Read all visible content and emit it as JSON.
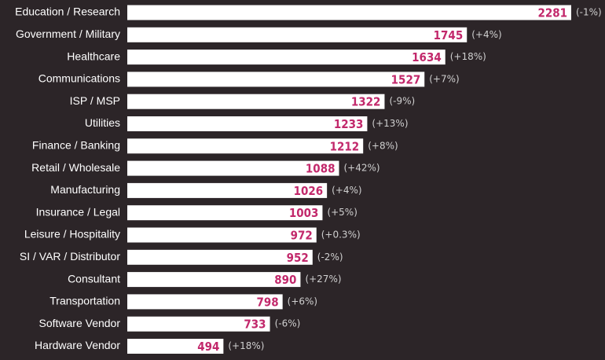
{
  "chart_data": {
    "type": "bar",
    "orientation": "horizontal",
    "title": "",
    "xlabel": "",
    "ylabel": "",
    "grid": false,
    "categories": [
      "Education / Research",
      "Government / Military",
      "Healthcare",
      "Communications",
      "ISP / MSP",
      "Utilities",
      "Finance / Banking",
      "Retail / Wholesale",
      "Manufacturing",
      "Insurance / Legal",
      "Leisure / Hospitality",
      "SI / VAR / Distributor",
      "Consultant",
      "Transportation",
      "Software Vendor",
      "Hardware Vendor"
    ],
    "values": [
      2281,
      1745,
      1634,
      1527,
      1322,
      1233,
      1212,
      1088,
      1026,
      1003,
      972,
      952,
      890,
      798,
      733,
      494
    ],
    "value_labels": [
      "2281",
      "1745",
      "1634",
      "1527",
      "1322",
      "1233",
      "1212",
      "1088",
      "1026",
      "1003",
      "972",
      "952",
      "890",
      "798",
      "733",
      "494"
    ],
    "changes": [
      "(-1%)",
      "(+4%)",
      "(+18%)",
      "(+7%)",
      "(-9%)",
      "(+13%)",
      "(+8%)",
      "(+42%)",
      "(+4%)",
      "(+5%)",
      "(+0.3%)",
      "(-2%)",
      "(+27%)",
      "(+6%)",
      "(-6%)",
      "(+18%)"
    ],
    "colors": {
      "background": "#2c2528",
      "bar": "#ffffff",
      "value_text": "#c2286b",
      "change_text": "#cfcfcf",
      "label_text": "#ffffff"
    }
  }
}
